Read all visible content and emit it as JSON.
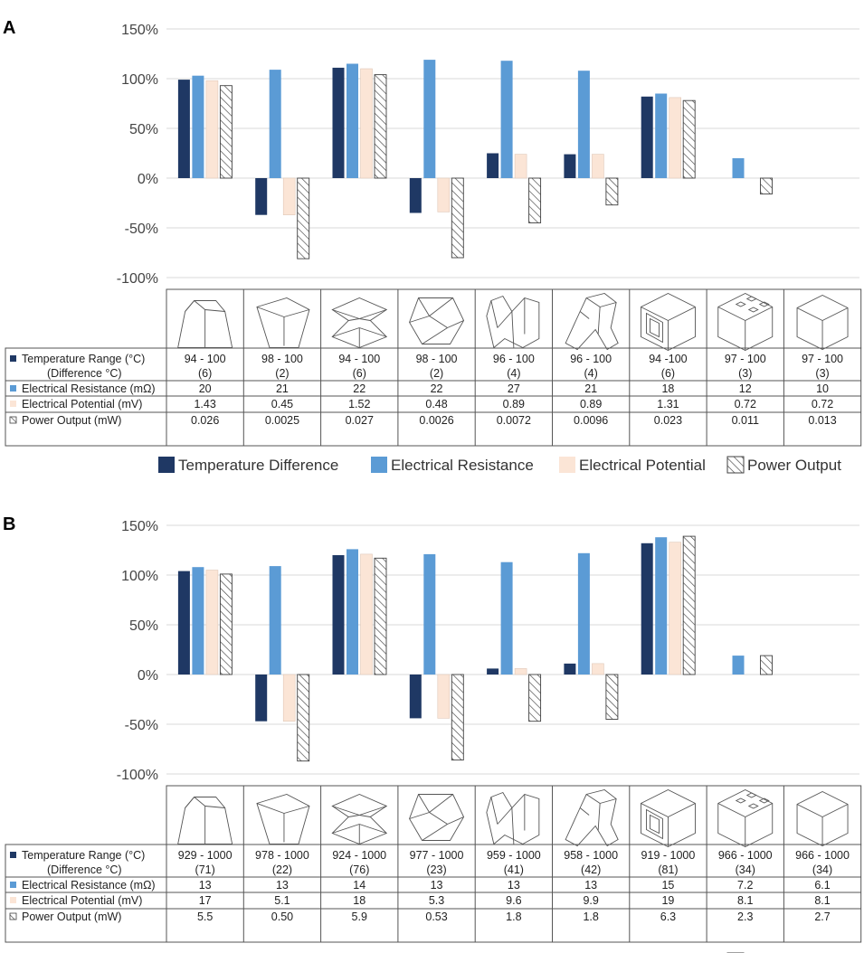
{
  "colors": {
    "temperature": "#1f3864",
    "resistance": "#5b9bd5",
    "potential": "#fbe5d6",
    "power_pattern": "#404040",
    "grid": "#d9d9d9"
  },
  "shape_icons": [
    "frustum-icon",
    "twisted-frustum-icon",
    "hourglass-icon",
    "faceted-polyhedron-icon",
    "folded-v-block-icon",
    "bent-y-block-icon",
    "hollow-cube-icon",
    "perforated-cube-icon",
    "cube-icon"
  ],
  "legend": {
    "temperature": "Temperature Difference",
    "resistance": "Electrical Resistance",
    "potential": "Electrical Potential",
    "power": "Power Output"
  },
  "chart_data": [
    {
      "panel": "A",
      "type": "bar",
      "ylim": [
        -100,
        150
      ],
      "yticks": [
        "150%",
        "100%",
        "50%",
        "0%",
        "-50%",
        "-100%"
      ],
      "ytick_values": [
        150,
        100,
        50,
        0,
        -50,
        -100
      ],
      "grid": true,
      "series": [
        {
          "name": "Temperature Difference",
          "key": "temperature",
          "values": [
            99,
            -37,
            111,
            -35,
            25,
            24,
            82,
            null,
            null
          ]
        },
        {
          "name": "Electrical Resistance",
          "key": "resistance",
          "values": [
            103,
            109,
            115,
            119,
            118,
            108,
            85,
            20,
            null
          ]
        },
        {
          "name": "Electrical Potential",
          "key": "potential",
          "values": [
            98,
            -37,
            110,
            -34,
            24,
            24,
            81,
            null,
            null
          ]
        },
        {
          "name": "Power Output",
          "key": "power",
          "values": [
            93,
            -81,
            104,
            -80,
            -45,
            -27,
            78,
            -16,
            null
          ]
        }
      ],
      "table": {
        "row_labels": [
          "Temperature Range (°C)",
          "(Difference °C)",
          "Electrical Resistance (mΩ)",
          "Electrical Potential (mV)",
          "Power Output (mW)"
        ],
        "temp_range": [
          "94 - 100",
          "98 - 100",
          "94 - 100",
          "98 - 100",
          "96 - 100",
          "96 - 100",
          "94 -100",
          "97 - 100",
          "97 - 100"
        ],
        "temp_diff": [
          "(6)",
          "(2)",
          "(6)",
          "(2)",
          "(4)",
          "(4)",
          "(6)",
          "(3)",
          "(3)"
        ],
        "resistance": [
          "20",
          "21",
          "22",
          "22",
          "27",
          "21",
          "18",
          "12",
          "10"
        ],
        "potential": [
          "1.43",
          "0.45",
          "1.52",
          "0.48",
          "0.89",
          "0.89",
          "1.31",
          "0.72",
          "0.72"
        ],
        "power": [
          "0.026",
          "0.0025",
          "0.027",
          "0.0026",
          "0.0072",
          "0.0096",
          "0.023",
          "0.011",
          "0.013"
        ]
      }
    },
    {
      "panel": "B",
      "type": "bar",
      "ylim": [
        -100,
        150
      ],
      "yticks": [
        "150%",
        "100%",
        "50%",
        "0%",
        "-50%",
        "-100%"
      ],
      "ytick_values": [
        150,
        100,
        50,
        0,
        -50,
        -100
      ],
      "grid": true,
      "series": [
        {
          "name": "Temperature Difference",
          "key": "temperature",
          "values": [
            104,
            -47,
            120,
            -44,
            6,
            11,
            132,
            null,
            null
          ]
        },
        {
          "name": "Electrical Resistance",
          "key": "resistance",
          "values": [
            108,
            109,
            126,
            121,
            113,
            122,
            138,
            19,
            null
          ]
        },
        {
          "name": "Electrical Potential",
          "key": "potential",
          "values": [
            105,
            -47,
            121,
            -44,
            6,
            11,
            133,
            null,
            null
          ]
        },
        {
          "name": "Power Output",
          "key": "power",
          "values": [
            101,
            -87,
            117,
            -86,
            -47,
            -45,
            139,
            19,
            null
          ]
        }
      ],
      "table": {
        "row_labels": [
          "Temperature Range (°C)",
          "(Difference °C)",
          "Electrical Resistance (mΩ)",
          "Electrical Potential (mV)",
          "Power Output (mW)"
        ],
        "temp_range": [
          "929 - 1000",
          "978 - 1000",
          "924 - 1000",
          "977 - 1000",
          "959 - 1000",
          "958 - 1000",
          "919 - 1000",
          "966 - 1000",
          "966 - 1000"
        ],
        "temp_diff": [
          "(71)",
          "(22)",
          "(76)",
          "(23)",
          "(41)",
          "(42)",
          "(81)",
          "(34)",
          "(34)"
        ],
        "resistance": [
          "13",
          "13",
          "14",
          "13",
          "13",
          "13",
          "15",
          "7.2",
          "6.1"
        ],
        "potential": [
          "17",
          "5.1",
          "18",
          "5.3",
          "9.6",
          "9.9",
          "19",
          "8.1",
          "8.1"
        ],
        "power": [
          "5.5",
          "0.50",
          "5.9",
          "0.53",
          "1.8",
          "1.8",
          "6.3",
          "2.3",
          "2.7"
        ]
      }
    }
  ]
}
